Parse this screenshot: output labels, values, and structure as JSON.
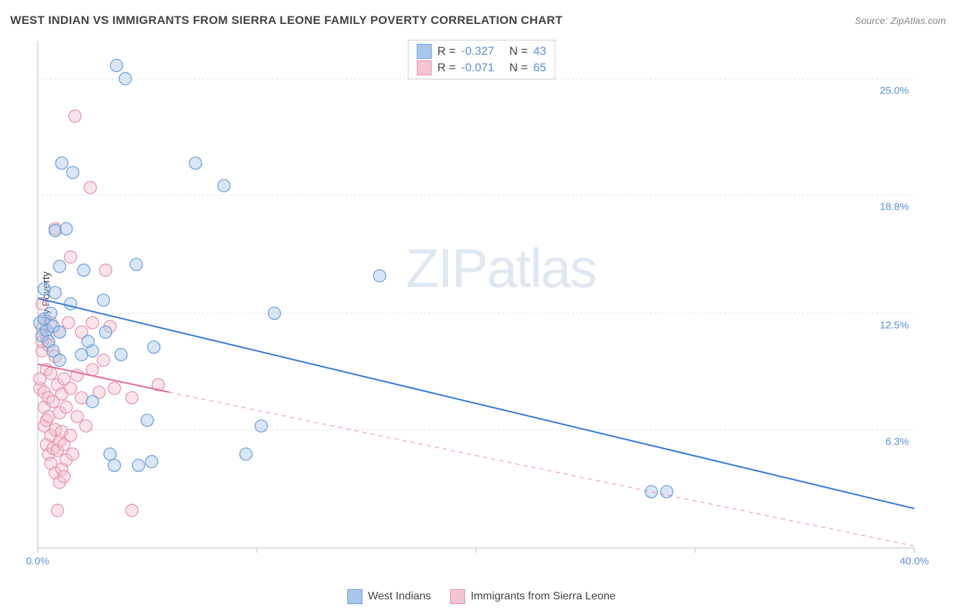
{
  "title": "WEST INDIAN VS IMMIGRANTS FROM SIERRA LEONE FAMILY POVERTY CORRELATION CHART",
  "source": "Source: ZipAtlas.com",
  "ylabel": "Family Poverty",
  "watermark": "ZIPatlas",
  "chart": {
    "type": "scatter",
    "xlim": [
      0,
      40
    ],
    "ylim": [
      0,
      27
    ],
    "x_ticks": [
      0,
      10,
      20,
      30,
      40
    ],
    "x_tick_labels": [
      "0.0%",
      "",
      "",
      "",
      "40.0%"
    ],
    "y_gridlines": [
      6.3,
      12.5,
      18.8,
      25.0
    ],
    "y_tick_labels": [
      "6.3%",
      "12.5%",
      "18.8%",
      "25.0%"
    ],
    "background_color": "#ffffff",
    "grid_color": "#dddddd",
    "axis_color": "#bbbbbb",
    "tick_label_color": "#5a8fd6",
    "marker_radius": 9,
    "marker_opacity": 0.45
  },
  "series": [
    {
      "name": "West Indians",
      "fill_color": "#a9c7ea",
      "stroke_color": "#6b9fd9",
      "line_color": "#3b7dd8",
      "line_width": 2.2,
      "line_dashed": false,
      "R": "-0.327",
      "N": "43",
      "trend": {
        "x1": 0,
        "y1": 13.3,
        "x2": 40,
        "y2": 2.1,
        "extend_dashed": false
      },
      "points": [
        [
          0.1,
          12.0
        ],
        [
          0.2,
          11.3
        ],
        [
          0.3,
          12.2
        ],
        [
          0.3,
          13.8
        ],
        [
          0.4,
          11.6
        ],
        [
          0.5,
          11.0
        ],
        [
          0.6,
          12.5
        ],
        [
          0.7,
          10.5
        ],
        [
          0.7,
          11.8
        ],
        [
          0.8,
          13.6
        ],
        [
          0.8,
          16.9
        ],
        [
          1.0,
          10.0
        ],
        [
          1.0,
          11.5
        ],
        [
          1.0,
          15.0
        ],
        [
          1.1,
          20.5
        ],
        [
          1.3,
          17.0
        ],
        [
          1.5,
          13.0
        ],
        [
          1.6,
          20.0
        ],
        [
          2.0,
          10.3
        ],
        [
          2.1,
          14.8
        ],
        [
          2.3,
          11.0
        ],
        [
          2.5,
          7.8
        ],
        [
          2.5,
          10.5
        ],
        [
          3.0,
          13.2
        ],
        [
          3.1,
          11.5
        ],
        [
          3.3,
          5.0
        ],
        [
          3.5,
          4.4
        ],
        [
          3.6,
          25.7
        ],
        [
          3.8,
          10.3
        ],
        [
          4.0,
          25.0
        ],
        [
          4.5,
          15.1
        ],
        [
          4.6,
          4.4
        ],
        [
          5.0,
          6.8
        ],
        [
          5.2,
          4.6
        ],
        [
          5.3,
          10.7
        ],
        [
          7.2,
          20.5
        ],
        [
          8.5,
          19.3
        ],
        [
          9.5,
          5.0
        ],
        [
          10.2,
          6.5
        ],
        [
          10.8,
          12.5
        ],
        [
          15.6,
          14.5
        ],
        [
          28.0,
          3.0
        ],
        [
          28.7,
          3.0
        ]
      ]
    },
    {
      "name": "Immigrants from Sierra Leone",
      "fill_color": "#f4c4d0",
      "stroke_color": "#e394ab",
      "line_color": "#e26f93",
      "line_width": 2.2,
      "line_dashed": false,
      "R": "-0.071",
      "N": "65",
      "trend": {
        "x1": 0,
        "y1": 9.8,
        "x2": 6,
        "y2": 8.3,
        "extend_dashed": true,
        "dashed_x2": 40,
        "dashed_y2": 0.1
      },
      "points": [
        [
          0.1,
          8.5
        ],
        [
          0.1,
          9.0
        ],
        [
          0.2,
          10.5
        ],
        [
          0.2,
          11.0
        ],
        [
          0.2,
          11.7
        ],
        [
          0.2,
          13.0
        ],
        [
          0.3,
          6.5
        ],
        [
          0.3,
          7.5
        ],
        [
          0.3,
          8.3
        ],
        [
          0.3,
          12.2
        ],
        [
          0.4,
          5.5
        ],
        [
          0.4,
          6.8
        ],
        [
          0.4,
          9.5
        ],
        [
          0.4,
          11.2
        ],
        [
          0.5,
          5.0
        ],
        [
          0.5,
          7.0
        ],
        [
          0.5,
          8.0
        ],
        [
          0.5,
          10.8
        ],
        [
          0.6,
          4.5
        ],
        [
          0.6,
          6.0
        ],
        [
          0.6,
          9.3
        ],
        [
          0.6,
          12.0
        ],
        [
          0.7,
          5.3
        ],
        [
          0.7,
          7.8
        ],
        [
          0.8,
          4.0
        ],
        [
          0.8,
          6.3
        ],
        [
          0.8,
          10.2
        ],
        [
          0.8,
          17.0
        ],
        [
          0.9,
          2.0
        ],
        [
          0.9,
          5.2
        ],
        [
          0.9,
          8.7
        ],
        [
          1.0,
          3.5
        ],
        [
          1.0,
          5.7
        ],
        [
          1.0,
          7.2
        ],
        [
          1.0,
          11.5
        ],
        [
          1.1,
          4.2
        ],
        [
          1.1,
          6.2
        ],
        [
          1.1,
          8.2
        ],
        [
          1.2,
          3.8
        ],
        [
          1.2,
          5.5
        ],
        [
          1.2,
          9.0
        ],
        [
          1.3,
          4.7
        ],
        [
          1.3,
          7.5
        ],
        [
          1.4,
          12.0
        ],
        [
          1.5,
          6.0
        ],
        [
          1.5,
          8.5
        ],
        [
          1.5,
          15.5
        ],
        [
          1.6,
          5.0
        ],
        [
          1.7,
          23.0
        ],
        [
          1.8,
          7.0
        ],
        [
          1.8,
          9.2
        ],
        [
          2.0,
          8.0
        ],
        [
          2.0,
          11.5
        ],
        [
          2.2,
          6.5
        ],
        [
          2.4,
          19.2
        ],
        [
          2.5,
          9.5
        ],
        [
          2.5,
          12.0
        ],
        [
          2.8,
          8.3
        ],
        [
          3.0,
          10.0
        ],
        [
          3.1,
          14.8
        ],
        [
          3.3,
          11.8
        ],
        [
          3.5,
          8.5
        ],
        [
          4.3,
          2.0
        ],
        [
          4.3,
          8.0
        ],
        [
          5.5,
          8.7
        ]
      ]
    }
  ],
  "legend_bottom": [
    {
      "label": "West Indians",
      "fill": "#a9c7ea",
      "border": "#6b9fd9"
    },
    {
      "label": "Immigrants from Sierra Leone",
      "fill": "#f4c4d0",
      "border": "#e394ab"
    }
  ],
  "legend_top_labels": {
    "R": "R =",
    "N": "N ="
  }
}
